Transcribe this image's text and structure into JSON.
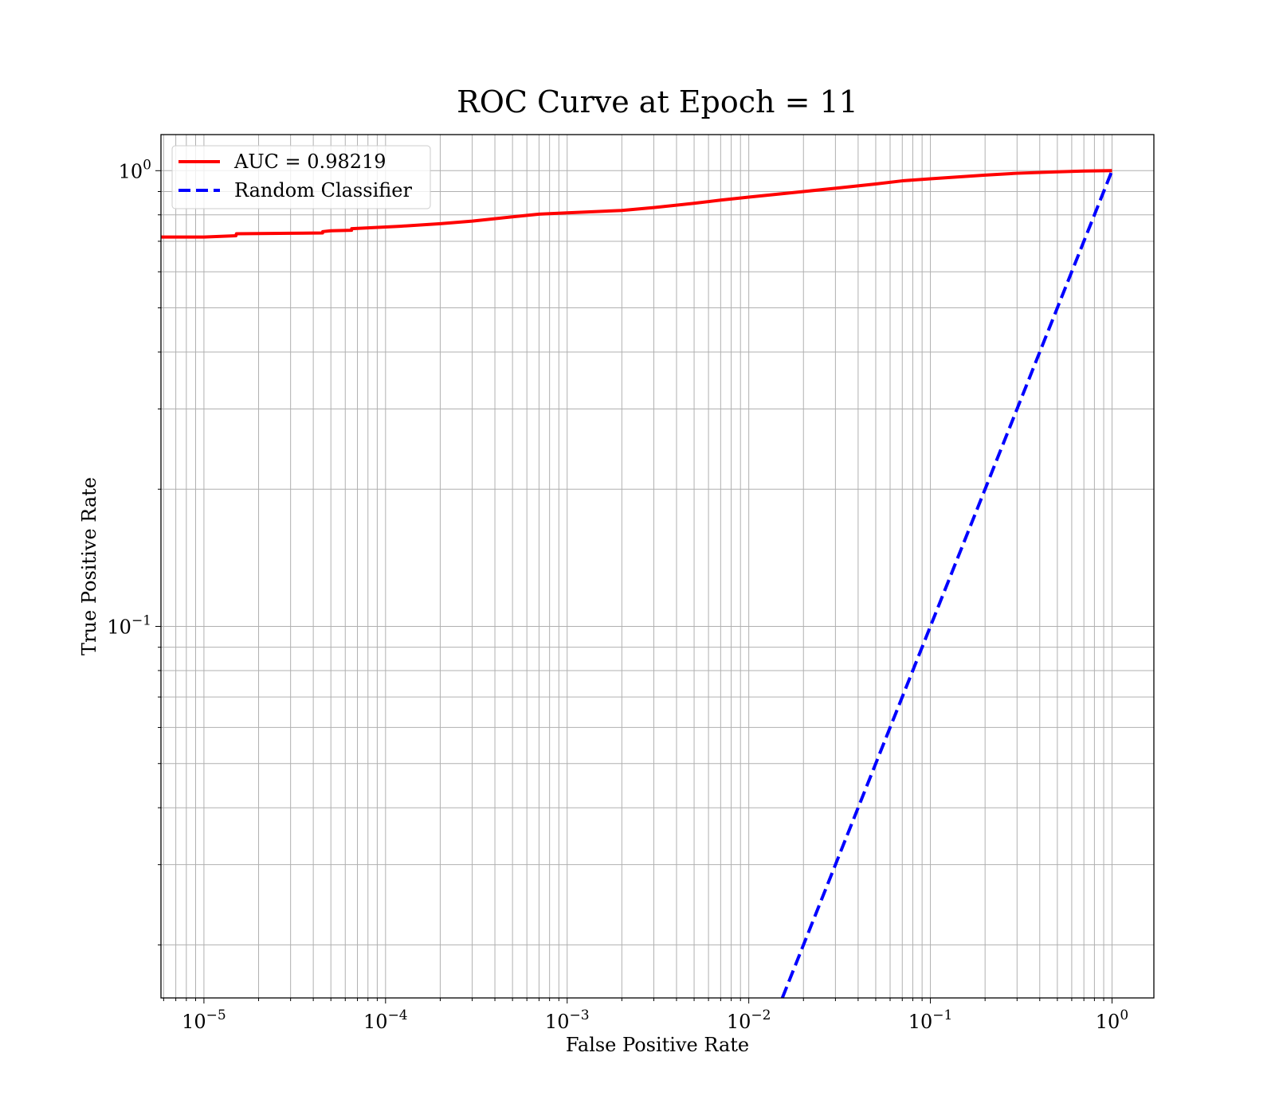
{
  "chart_data": {
    "type": "line",
    "title": "ROC Curve at Epoch = 11",
    "xlabel": "False Positive Rate",
    "ylabel": "True Positive Rate",
    "xscale": "log",
    "yscale": "log",
    "xlim": [
      5.8e-06,
      1.7
    ],
    "ylim": [
      0.0153,
      1.2
    ],
    "grid": "on (major and minor)",
    "legend_placement": "upper-left",
    "x_ticks": [
      {
        "value": 1e-05,
        "base": "10",
        "exp": "−5"
      },
      {
        "value": 0.0001,
        "base": "10",
        "exp": "−4"
      },
      {
        "value": 0.001,
        "base": "10",
        "exp": "−3"
      },
      {
        "value": 0.01,
        "base": "10",
        "exp": "−2"
      },
      {
        "value": 0.1,
        "base": "10",
        "exp": "−1"
      },
      {
        "value": 1,
        "base": "10",
        "exp": "0"
      }
    ],
    "y_ticks": [
      {
        "value": 0.1,
        "base": "10",
        "exp": "−1"
      },
      {
        "value": 1,
        "base": "10",
        "exp": "0"
      }
    ],
    "series": [
      {
        "name": "AUC = 0.98219",
        "color": "#ff0000",
        "style": "solid",
        "x": [
          5.8e-06,
          1e-05,
          1.5e-05,
          1.51e-05,
          3e-05,
          4.5e-05,
          4.51e-05,
          5e-05,
          6.5e-05,
          6.51e-05,
          8e-05,
          0.00012,
          0.0002,
          0.0003,
          0.0005,
          0.0007,
          0.001,
          0.002,
          0.003,
          0.005,
          0.007,
          0.01,
          0.02,
          0.03,
          0.05,
          0.07,
          0.1,
          0.2,
          0.3,
          0.5,
          0.7,
          1
        ],
        "y": [
          0.715,
          0.715,
          0.72,
          0.727,
          0.729,
          0.73,
          0.735,
          0.738,
          0.74,
          0.746,
          0.749,
          0.755,
          0.765,
          0.775,
          0.792,
          0.803,
          0.808,
          0.818,
          0.83,
          0.848,
          0.862,
          0.875,
          0.9,
          0.915,
          0.935,
          0.95,
          0.96,
          0.978,
          0.987,
          0.994,
          0.998,
          1.0
        ]
      },
      {
        "name": "Random Classifier",
        "color": "#0000ff",
        "style": "dashed",
        "x": [
          0.0153,
          1
        ],
        "y": [
          0.0153,
          1
        ]
      }
    ]
  }
}
